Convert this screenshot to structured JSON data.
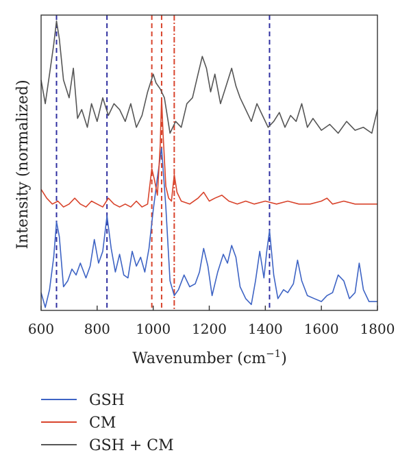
{
  "chart_data": {
    "type": "line",
    "xlabel_main": "Wavenumber (cm",
    "xlabel_sup": "−1",
    "xlabel_close": ")",
    "ylabel": "Intensity (normalized)",
    "xlim": [
      600,
      1800
    ],
    "x_ticks": [
      "600",
      "800",
      "1000",
      "1200",
      "1400",
      "1600",
      "1800"
    ],
    "x_tick_values": [
      600,
      800,
      1000,
      1200,
      1400,
      1600,
      1800
    ],
    "grid": false,
    "legend_position": "bottom-left",
    "reference_lines": [
      {
        "x": 655,
        "color": "#2f2fa0",
        "style": "dashed"
      },
      {
        "x": 835,
        "color": "#2f2fa0",
        "style": "dashed"
      },
      {
        "x": 995,
        "color": "#d8432b",
        "style": "dashed"
      },
      {
        "x": 1030,
        "color": "#d8432b",
        "style": "dashed"
      },
      {
        "x": 1075,
        "color": "#d8432b",
        "style": "dashdot"
      },
      {
        "x": 1415,
        "color": "#2f2fa0",
        "style": "dashed"
      }
    ],
    "series": [
      {
        "name": "GSH",
        "color": "#3d63c4",
        "x": [
          600,
          615,
          630,
          645,
          655,
          665,
          680,
          695,
          710,
          725,
          740,
          760,
          775,
          790,
          805,
          820,
          835,
          850,
          865,
          880,
          895,
          910,
          925,
          940,
          955,
          970,
          985,
          1000,
          1015,
          1030,
          1045,
          1060,
          1075,
          1090,
          1110,
          1130,
          1150,
          1165,
          1180,
          1195,
          1210,
          1230,
          1250,
          1265,
          1280,
          1295,
          1310,
          1330,
          1350,
          1365,
          1380,
          1395,
          1405,
          1415,
          1430,
          1445,
          1465,
          1480,
          1500,
          1515,
          1530,
          1550,
          1575,
          1600,
          1620,
          1640,
          1660,
          1680,
          1700,
          1720,
          1735,
          1750,
          1770,
          1800
        ],
        "y": [
          0.06,
          0.01,
          0.07,
          0.18,
          0.3,
          0.25,
          0.08,
          0.1,
          0.14,
          0.12,
          0.16,
          0.11,
          0.15,
          0.24,
          0.16,
          0.2,
          0.32,
          0.21,
          0.13,
          0.19,
          0.12,
          0.11,
          0.2,
          0.15,
          0.18,
          0.13,
          0.21,
          0.34,
          0.45,
          0.55,
          0.35,
          0.1,
          0.05,
          0.07,
          0.12,
          0.08,
          0.09,
          0.13,
          0.21,
          0.15,
          0.05,
          0.13,
          0.19,
          0.16,
          0.22,
          0.18,
          0.08,
          0.04,
          0.02,
          0.1,
          0.2,
          0.11,
          0.2,
          0.27,
          0.12,
          0.04,
          0.07,
          0.06,
          0.09,
          0.17,
          0.1,
          0.05,
          0.04,
          0.03,
          0.05,
          0.06,
          0.12,
          0.1,
          0.04,
          0.06,
          0.16,
          0.07,
          0.03,
          0.03
        ]
      },
      {
        "name": "CM",
        "color": "#d8432b",
        "x": [
          600,
          620,
          640,
          660,
          680,
          700,
          720,
          740,
          760,
          780,
          800,
          820,
          840,
          860,
          880,
          900,
          920,
          940,
          960,
          980,
          995,
          1005,
          1015,
          1025,
          1030,
          1035,
          1045,
          1055,
          1065,
          1075,
          1085,
          1100,
          1130,
          1160,
          1180,
          1200,
          1220,
          1245,
          1270,
          1300,
          1330,
          1360,
          1400,
          1440,
          1480,
          1520,
          1560,
          1600,
          1620,
          1640,
          1680,
          1720,
          1760,
          1800
        ],
        "y": [
          0.41,
          0.38,
          0.36,
          0.37,
          0.35,
          0.36,
          0.38,
          0.36,
          0.35,
          0.37,
          0.36,
          0.35,
          0.38,
          0.36,
          0.35,
          0.36,
          0.35,
          0.37,
          0.35,
          0.36,
          0.48,
          0.44,
          0.39,
          0.56,
          0.72,
          0.6,
          0.42,
          0.38,
          0.37,
          0.46,
          0.4,
          0.37,
          0.36,
          0.38,
          0.4,
          0.37,
          0.38,
          0.39,
          0.37,
          0.36,
          0.37,
          0.36,
          0.37,
          0.36,
          0.37,
          0.36,
          0.36,
          0.37,
          0.38,
          0.36,
          0.37,
          0.36,
          0.36,
          0.36
        ]
      },
      {
        "name": "GSH + CM",
        "color": "#555555",
        "x": [
          600,
          615,
          630,
          645,
          655,
          665,
          680,
          700,
          715,
          730,
          745,
          765,
          780,
          800,
          820,
          840,
          860,
          880,
          900,
          920,
          940,
          960,
          980,
          1000,
          1010,
          1025,
          1040,
          1060,
          1080,
          1100,
          1120,
          1140,
          1160,
          1175,
          1190,
          1205,
          1220,
          1240,
          1260,
          1280,
          1295,
          1310,
          1330,
          1350,
          1370,
          1390,
          1410,
          1430,
          1450,
          1470,
          1490,
          1510,
          1530,
          1550,
          1570,
          1600,
          1630,
          1660,
          1690,
          1720,
          1750,
          1780,
          1800
        ],
        "y": [
          0.78,
          0.7,
          0.8,
          0.9,
          0.98,
          0.92,
          0.78,
          0.72,
          0.82,
          0.65,
          0.68,
          0.62,
          0.7,
          0.64,
          0.72,
          0.66,
          0.7,
          0.68,
          0.64,
          0.7,
          0.62,
          0.66,
          0.74,
          0.8,
          0.77,
          0.75,
          0.72,
          0.6,
          0.64,
          0.62,
          0.7,
          0.72,
          0.8,
          0.86,
          0.82,
          0.74,
          0.8,
          0.7,
          0.76,
          0.82,
          0.76,
          0.72,
          0.68,
          0.64,
          0.7,
          0.66,
          0.62,
          0.64,
          0.67,
          0.62,
          0.66,
          0.64,
          0.7,
          0.62,
          0.65,
          0.61,
          0.63,
          0.6,
          0.64,
          0.61,
          0.62,
          0.6,
          0.68
        ]
      }
    ]
  }
}
